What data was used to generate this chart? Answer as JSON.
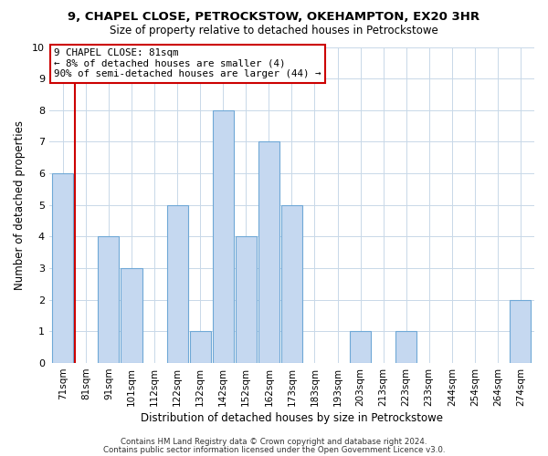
{
  "title1": "9, CHAPEL CLOSE, PETROCKSTOW, OKEHAMPTON, EX20 3HR",
  "title2": "Size of property relative to detached houses in Petrockstowe",
  "xlabel": "Distribution of detached houses by size in Petrockstowe",
  "ylabel": "Number of detached properties",
  "footer1": "Contains HM Land Registry data © Crown copyright and database right 2024.",
  "footer2": "Contains public sector information licensed under the Open Government Licence v3.0.",
  "annotation_line1": "9 CHAPEL CLOSE: 81sqm",
  "annotation_line2": "← 8% of detached houses are smaller (4)",
  "annotation_line3": "90% of semi-detached houses are larger (44) →",
  "bar_labels": [
    "71sqm",
    "81sqm",
    "91sqm",
    "101sqm",
    "112sqm",
    "122sqm",
    "132sqm",
    "142sqm",
    "152sqm",
    "162sqm",
    "173sqm",
    "183sqm",
    "193sqm",
    "203sqm",
    "213sqm",
    "223sqm",
    "233sqm",
    "244sqm",
    "254sqm",
    "264sqm",
    "274sqm"
  ],
  "bar_values": [
    6,
    0,
    4,
    3,
    0,
    5,
    1,
    8,
    4,
    7,
    5,
    0,
    0,
    1,
    0,
    1,
    0,
    0,
    0,
    0,
    2
  ],
  "highlight_index": 1,
  "bar_color_normal": "#c5d8f0",
  "bar_edge_color": "#6fa8d6",
  "highlight_line_color": "#cc0000",
  "annotation_box_edge_color": "#cc0000",
  "ylim": [
    0,
    10
  ],
  "yticks": [
    0,
    1,
    2,
    3,
    4,
    5,
    6,
    7,
    8,
    9,
    10
  ],
  "grid_color": "#c8d8e8",
  "bg_color": "#ffffff"
}
